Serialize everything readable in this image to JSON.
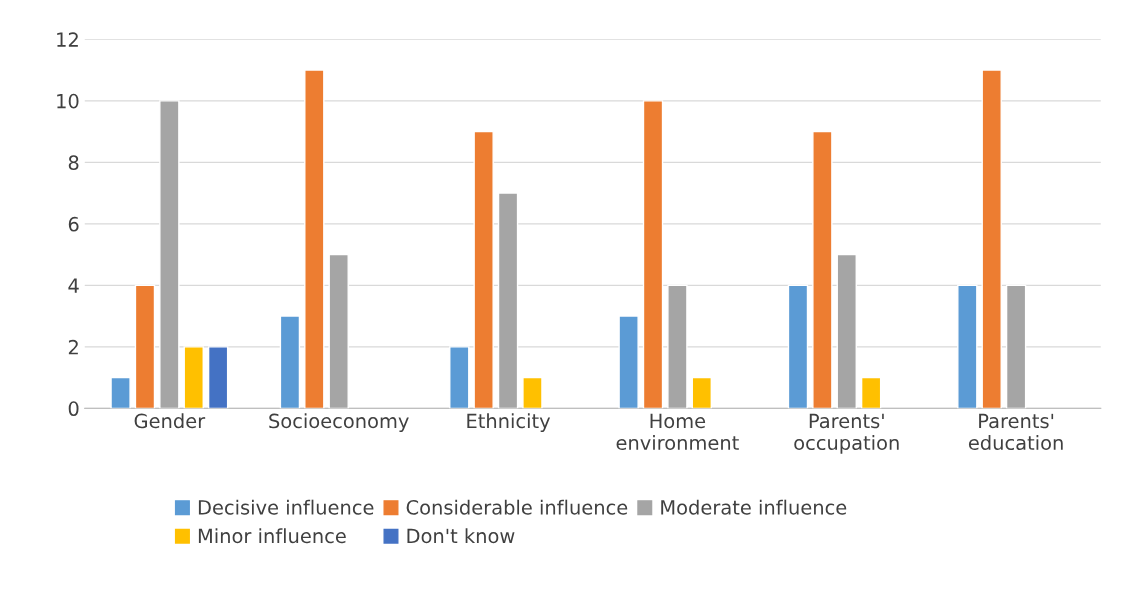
{
  "chart_data": {
    "type": "bar",
    "categories": [
      "Gender",
      "Socioeconomy",
      "Ethnicity",
      "Home\nenvironment",
      "Parents'\noccupation",
      "Parents'\neducation"
    ],
    "series": [
      {
        "name": "Decisive influence",
        "color": "#5b9bd5",
        "values": [
          1,
          3,
          2,
          3,
          4,
          4
        ]
      },
      {
        "name": "Considerable influence",
        "color": "#ed7d31",
        "values": [
          4,
          11,
          9,
          10,
          9,
          11
        ]
      },
      {
        "name": "Moderate influence",
        "color": "#a5a5a5",
        "values": [
          10,
          5,
          7,
          4,
          5,
          4
        ]
      },
      {
        "name": "Minor influence",
        "color": "#ffc000",
        "values": [
          2,
          null,
          1,
          1,
          1,
          null
        ]
      },
      {
        "name": "Don't know",
        "color": "#4472c4",
        "values": [
          2,
          null,
          null,
          null,
          null,
          null
        ]
      }
    ],
    "ylim": [
      0,
      12
    ],
    "yticks": [
      0,
      2,
      4,
      6,
      8,
      10,
      12
    ],
    "grid": "y",
    "legend": "bottom"
  }
}
